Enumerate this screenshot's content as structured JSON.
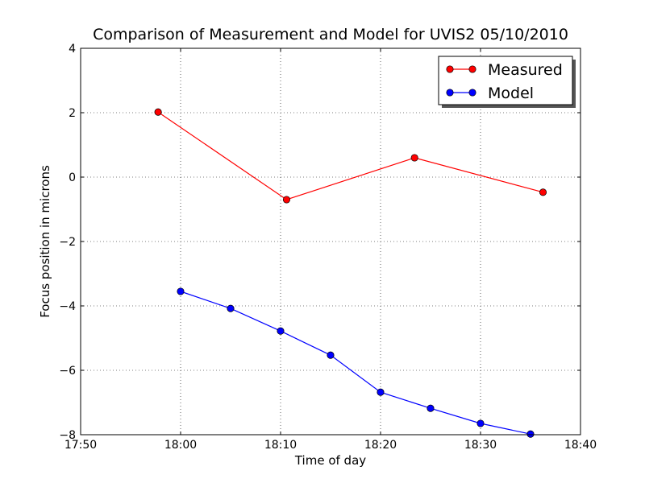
{
  "chart_data": {
    "type": "line",
    "title": "Comparison of Measurement and Model for UVIS2 05/10/2010",
    "xlabel": "Time of day",
    "ylabel": "Focus position in microns",
    "x_ticks": [
      "17:50",
      "18:00",
      "18:10",
      "18:20",
      "18:30",
      "18:40"
    ],
    "y_ticks": [
      "4",
      "2",
      "0",
      "−2",
      "−4",
      "−6",
      "−8"
    ],
    "xlim": [
      "17:50",
      "18:40"
    ],
    "ylim": [
      -8,
      4
    ],
    "grid": true,
    "legend_position": "top-right",
    "series": [
      {
        "name": "Measured",
        "color": "#ff0000",
        "x": [
          "17:57:45",
          "18:10:36",
          "18:23:24",
          "18:36:15"
        ],
        "y": [
          2.02,
          -0.7,
          0.6,
          -0.47
        ]
      },
      {
        "name": "Model",
        "color": "#0000ff",
        "x": [
          "18:00",
          "18:05",
          "18:10",
          "18:15",
          "18:20",
          "18:25",
          "18:30",
          "18:35"
        ],
        "y": [
          -3.55,
          -4.08,
          -4.78,
          -5.53,
          -6.68,
          -7.18,
          -7.65,
          -7.98
        ]
      }
    ]
  }
}
